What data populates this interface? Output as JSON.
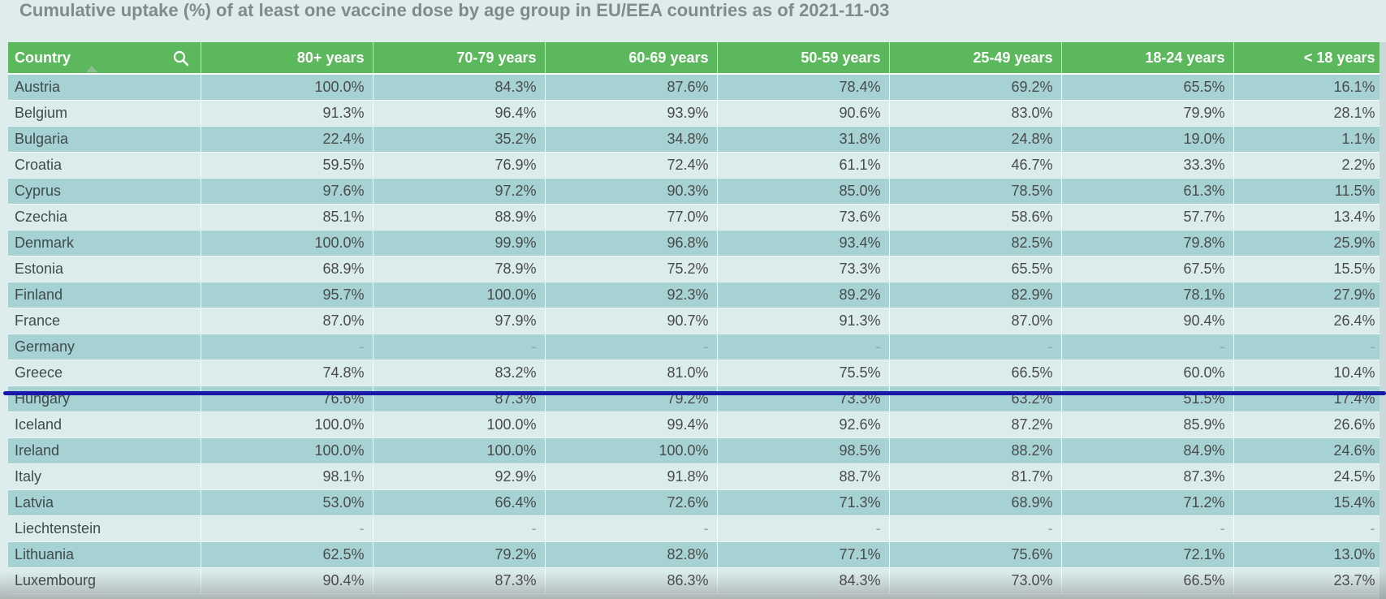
{
  "title": "Cumulative uptake (%) of at least one vaccine dose by age group in EU/EEA countries as of 2021-11-03",
  "chart_data": {
    "type": "table",
    "title": "Cumulative uptake (%) of at least one vaccine dose by age group in EU/EEA countries as of 2021-11-03",
    "columns": [
      "Country",
      "80+ years",
      "70-79 years",
      "60-69 years",
      "50-59 years",
      "25-49 years",
      "18-24 years",
      "< 18 years"
    ],
    "rows": [
      [
        "Austria",
        "100.0%",
        "84.3%",
        "87.6%",
        "78.4%",
        "69.2%",
        "65.5%",
        "16.1%"
      ],
      [
        "Belgium",
        "91.3%",
        "96.4%",
        "93.9%",
        "90.6%",
        "83.0%",
        "79.9%",
        "28.1%"
      ],
      [
        "Bulgaria",
        "22.4%",
        "35.2%",
        "34.8%",
        "31.8%",
        "24.8%",
        "19.0%",
        "1.1%"
      ],
      [
        "Croatia",
        "59.5%",
        "76.9%",
        "72.4%",
        "61.1%",
        "46.7%",
        "33.3%",
        "2.2%"
      ],
      [
        "Cyprus",
        "97.6%",
        "97.2%",
        "90.3%",
        "85.0%",
        "78.5%",
        "61.3%",
        "11.5%"
      ],
      [
        "Czechia",
        "85.1%",
        "88.9%",
        "77.0%",
        "73.6%",
        "58.6%",
        "57.7%",
        "13.4%"
      ],
      [
        "Denmark",
        "100.0%",
        "99.9%",
        "96.8%",
        "93.4%",
        "82.5%",
        "79.8%",
        "25.9%"
      ],
      [
        "Estonia",
        "68.9%",
        "78.9%",
        "75.2%",
        "73.3%",
        "65.5%",
        "67.5%",
        "15.5%"
      ],
      [
        "Finland",
        "95.7%",
        "100.0%",
        "92.3%",
        "89.2%",
        "82.9%",
        "78.1%",
        "27.9%"
      ],
      [
        "France",
        "87.0%",
        "97.9%",
        "90.7%",
        "91.3%",
        "87.0%",
        "90.4%",
        "26.4%"
      ],
      [
        "Germany",
        "-",
        "-",
        "-",
        "-",
        "-",
        "-",
        "-"
      ],
      [
        "Greece",
        "74.8%",
        "83.2%",
        "81.0%",
        "75.5%",
        "66.5%",
        "60.0%",
        "10.4%"
      ],
      [
        "Hungary",
        "76.6%",
        "87.3%",
        "79.2%",
        "73.3%",
        "63.2%",
        "51.5%",
        "17.4%"
      ],
      [
        "Iceland",
        "100.0%",
        "100.0%",
        "99.4%",
        "92.6%",
        "87.2%",
        "85.9%",
        "26.6%"
      ],
      [
        "Ireland",
        "100.0%",
        "100.0%",
        "100.0%",
        "98.5%",
        "88.2%",
        "84.9%",
        "24.6%"
      ],
      [
        "Italy",
        "98.1%",
        "92.9%",
        "91.8%",
        "88.7%",
        "81.7%",
        "87.3%",
        "24.5%"
      ],
      [
        "Latvia",
        "53.0%",
        "66.4%",
        "72.6%",
        "71.3%",
        "68.9%",
        "71.2%",
        "15.4%"
      ],
      [
        "Liechtenstein",
        "-",
        "-",
        "-",
        "-",
        "-",
        "-",
        "-"
      ],
      [
        "Lithuania",
        "62.5%",
        "79.2%",
        "82.8%",
        "77.1%",
        "75.6%",
        "72.1%",
        "13.0%"
      ],
      [
        "Luxembourg",
        "90.4%",
        "87.3%",
        "86.3%",
        "84.3%",
        "73.0%",
        "66.5%",
        "23.7%"
      ]
    ]
  },
  "icons": {
    "search": "search-icon",
    "sort": "sort-ascending-icon"
  },
  "colors": {
    "header_bg": "#5cb85c",
    "row_odd": "#a6d2d4",
    "row_even": "#dbeced",
    "scroll_line": "#1a16a8"
  }
}
